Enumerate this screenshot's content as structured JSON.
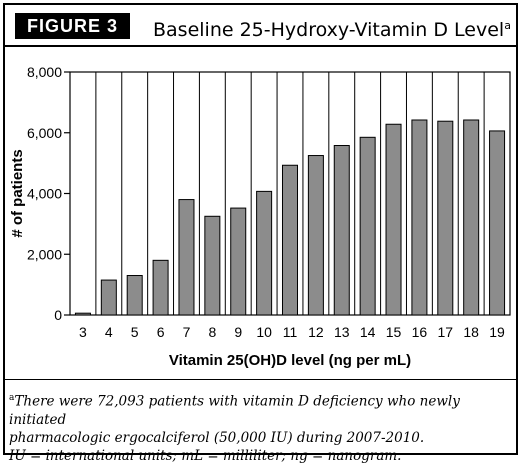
{
  "header": {
    "figure_label": "FIGURE 3",
    "title": "Baseline 25-Hydroxy-Vitamin D Level",
    "title_marker": "a"
  },
  "chart_data": {
    "type": "bar",
    "title": "Baseline 25-Hydroxy-Vitamin D Level",
    "xlabel": "Vitamin 25(OH)D level (ng per mL)",
    "ylabel": "# of patients",
    "ylim": [
      0,
      8000
    ],
    "yticks": [
      0,
      2000,
      4000,
      6000,
      8000
    ],
    "ytick_labels": [
      "0",
      "2,000",
      "4,000",
      "6,000",
      "8,000"
    ],
    "grid": "vertical",
    "bar_color": "#8c8c8c",
    "categories": [
      "3",
      "4",
      "5",
      "6",
      "7",
      "8",
      "9",
      "10",
      "11",
      "12",
      "13",
      "14",
      "15",
      "16",
      "17",
      "18",
      "19"
    ],
    "values": [
      60,
      1150,
      1300,
      1800,
      3800,
      3250,
      3520,
      4070,
      4930,
      5250,
      5580,
      5850,
      6280,
      6420,
      6380,
      6420,
      6060
    ]
  },
  "footnote": {
    "marker": "a",
    "line1": "There were 72,093 patients with vitamin D deficiency who newly initiated",
    "line2": "pharmacologic ergocalciferol (50,000 IU) during 2007-2010.",
    "line3": "IU = international units; mL = milliliter; ng = nanogram."
  }
}
